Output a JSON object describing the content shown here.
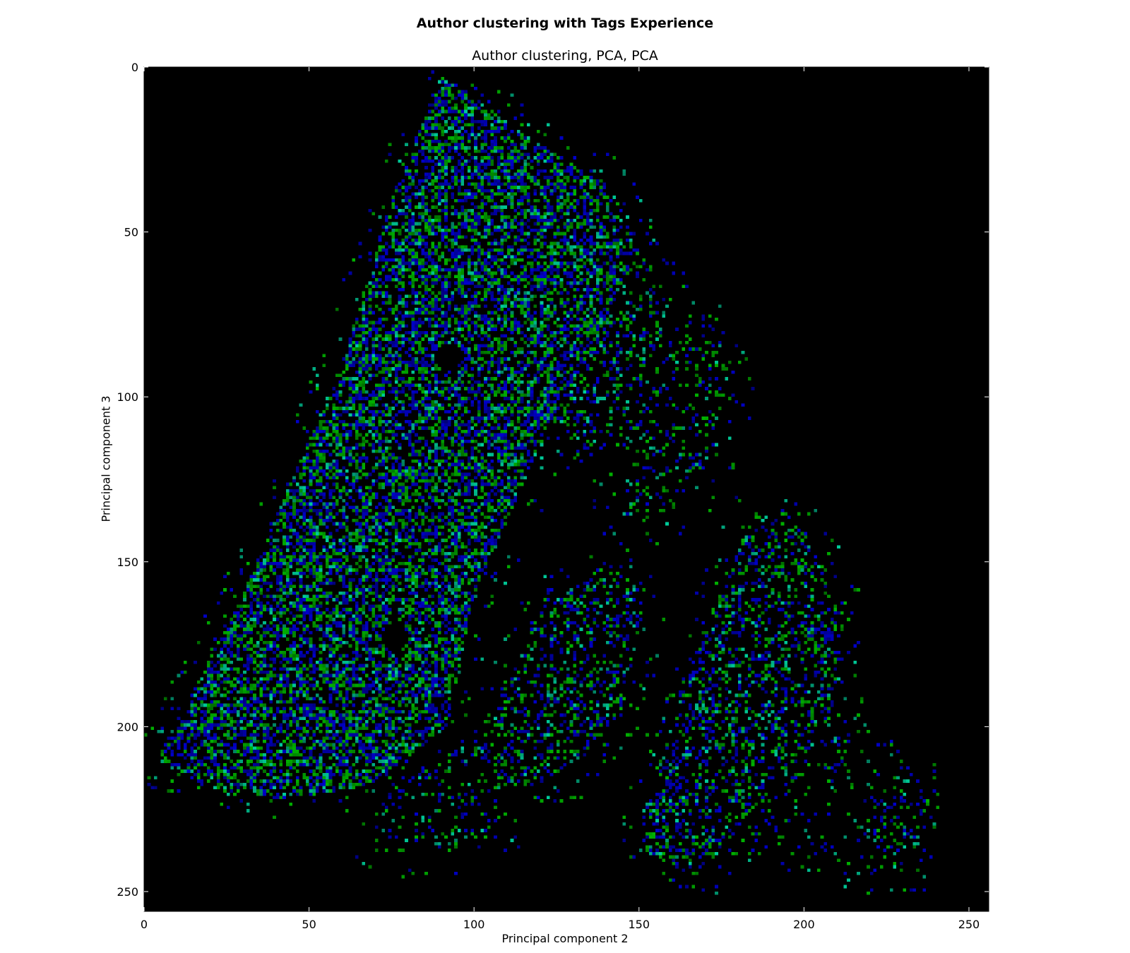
{
  "figure": {
    "suptitle": "Author clustering with Tags Experience"
  },
  "chart_data": {
    "type": "heatmap",
    "title": "Author clustering, PCA, PCA",
    "xlabel": "Principal component 2",
    "ylabel": "Principal component 3",
    "xlim": [
      0,
      256
    ],
    "ylim": [
      256,
      0
    ],
    "xticks": [
      0,
      50,
      100,
      150,
      200,
      250
    ],
    "yticks": [
      0,
      50,
      100,
      150,
      200,
      250
    ],
    "grid": false,
    "background": "#000000",
    "colors": [
      "#0000cc",
      "#00b300",
      "#00cc99"
    ],
    "density_regions": [
      {
        "name": "main-wedge",
        "polygon": [
          [
            90,
            2
          ],
          [
            112,
            18
          ],
          [
            138,
            35
          ],
          [
            148,
            60
          ],
          [
            122,
            110
          ],
          [
            100,
            160
          ],
          [
            92,
            200
          ],
          [
            68,
            218
          ],
          [
            42,
            222
          ],
          [
            18,
            218
          ],
          [
            4,
            210
          ],
          [
            30,
            160
          ],
          [
            60,
            90
          ],
          [
            75,
            40
          ]
        ],
        "density": 0.55
      },
      {
        "name": "upper-band-1",
        "polygon": [
          [
            118,
            40
          ],
          [
            138,
            30
          ],
          [
            150,
            55
          ],
          [
            132,
            105
          ],
          [
            118,
            112
          ],
          [
            112,
            90
          ]
        ],
        "density": 0.32
      },
      {
        "name": "upper-band-2",
        "polygon": [
          [
            135,
            70
          ],
          [
            150,
            55
          ],
          [
            160,
            70
          ],
          [
            148,
            110
          ],
          [
            132,
            120
          ],
          [
            128,
            100
          ]
        ],
        "density": 0.25
      },
      {
        "name": "upper-band-3",
        "polygon": [
          [
            160,
            80
          ],
          [
            172,
            75
          ],
          [
            180,
            100
          ],
          [
            165,
            130
          ],
          [
            150,
            140
          ],
          [
            140,
            130
          ]
        ],
        "density": 0.18
      },
      {
        "name": "middle-band",
        "polygon": [
          [
            120,
            165
          ],
          [
            140,
            150
          ],
          [
            152,
            160
          ],
          [
            145,
            195
          ],
          [
            128,
            215
          ],
          [
            108,
            220
          ],
          [
            100,
            205
          ]
        ],
        "density": 0.3
      },
      {
        "name": "lower-band",
        "polygon": [
          [
            150,
            230
          ],
          [
            168,
            175
          ],
          [
            185,
            135
          ],
          [
            200,
            140
          ],
          [
            212,
            168
          ],
          [
            208,
            200
          ],
          [
            185,
            225
          ],
          [
            168,
            245
          ],
          [
            152,
            240
          ]
        ],
        "density": 0.32
      },
      {
        "name": "lower-left-tail",
        "polygon": [
          [
            70,
            215
          ],
          [
            100,
            205
          ],
          [
            110,
            230
          ],
          [
            85,
            240
          ],
          [
            70,
            235
          ]
        ],
        "density": 0.14
      },
      {
        "name": "far-right-cluster",
        "polygon": [
          [
            215,
            225
          ],
          [
            232,
            212
          ],
          [
            240,
            225
          ],
          [
            230,
            245
          ],
          [
            218,
            245
          ]
        ],
        "density": 0.18
      },
      {
        "name": "right-sparse",
        "polygon": [
          [
            185,
            200
          ],
          [
            215,
            195
          ],
          [
            225,
            220
          ],
          [
            200,
            240
          ],
          [
            185,
            235
          ]
        ],
        "density": 0.1
      }
    ],
    "holes": [
      {
        "center": [
          92,
          88
        ],
        "radius": 4
      },
      {
        "center": [
          76,
          173
        ],
        "radius": 4
      }
    ]
  }
}
